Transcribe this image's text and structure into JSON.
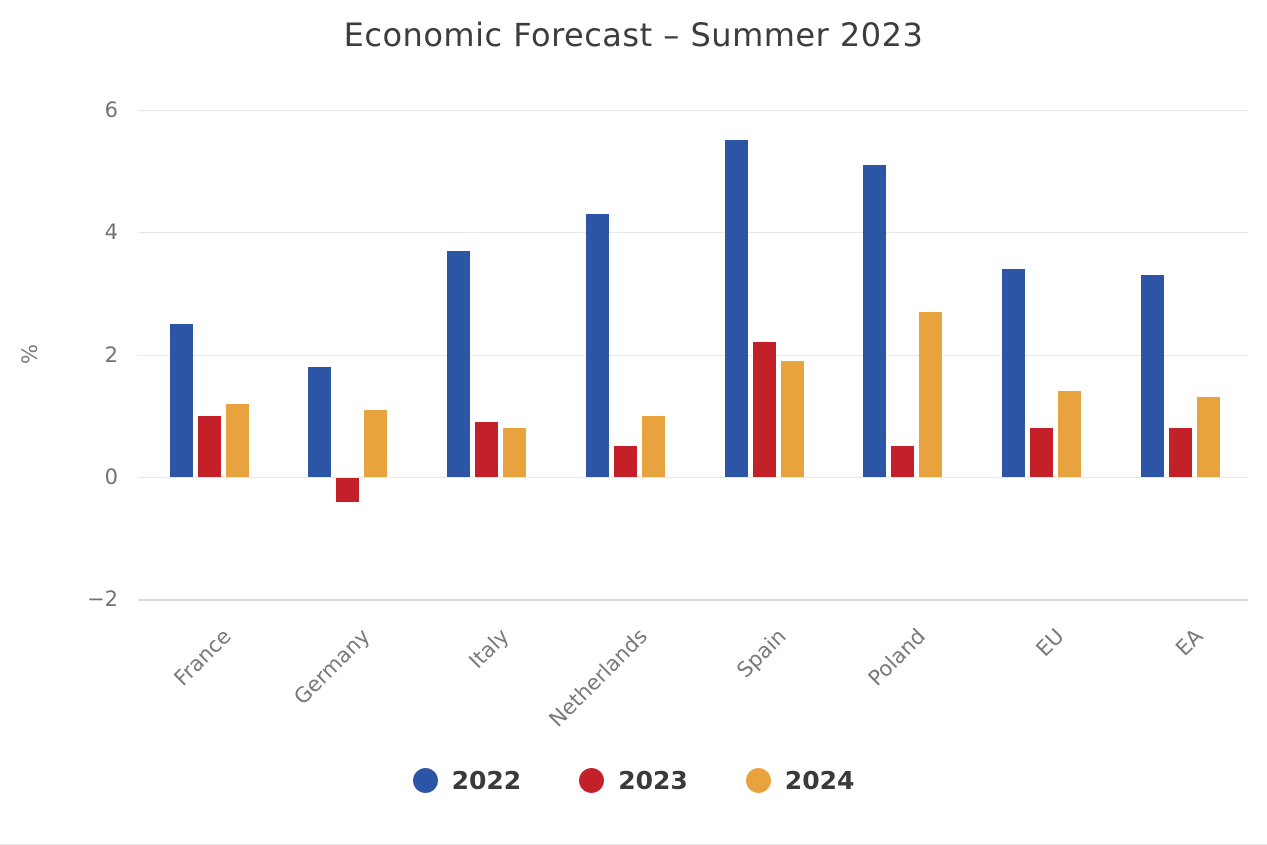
{
  "chart": {
    "title": "Economic Forecast – Summer 2023",
    "ylabel": "%"
  },
  "chart_data": {
    "type": "bar",
    "title": "Economic Forecast – Summer 2023",
    "xlabel": "",
    "ylabel": "%",
    "categories": [
      "France",
      "Germany",
      "Italy",
      "Netherlands",
      "Spain",
      "Poland",
      "EU",
      "EA"
    ],
    "series": [
      {
        "name": "2022",
        "color": "#2d55a5",
        "values": [
          2.5,
          1.8,
          3.7,
          4.3,
          5.5,
          5.1,
          3.4,
          3.3
        ]
      },
      {
        "name": "2023",
        "color": "#c4202a",
        "values": [
          1.0,
          -0.4,
          0.9,
          0.5,
          2.2,
          0.5,
          0.8,
          0.8
        ]
      },
      {
        "name": "2024",
        "color": "#e8a23e",
        "values": [
          1.2,
          1.1,
          0.8,
          1.0,
          1.9,
          2.7,
          1.4,
          1.3
        ]
      }
    ],
    "yticks": [
      "6",
      "4",
      "2",
      "0",
      "−2"
    ],
    "ytick_values": [
      6,
      4,
      2,
      0,
      -2
    ],
    "ylim": [
      -2,
      6
    ],
    "grid": true,
    "legend_position": "bottom",
    "baseline_color": "#d3dbe6",
    "grid_color": "#e8e8e8"
  }
}
